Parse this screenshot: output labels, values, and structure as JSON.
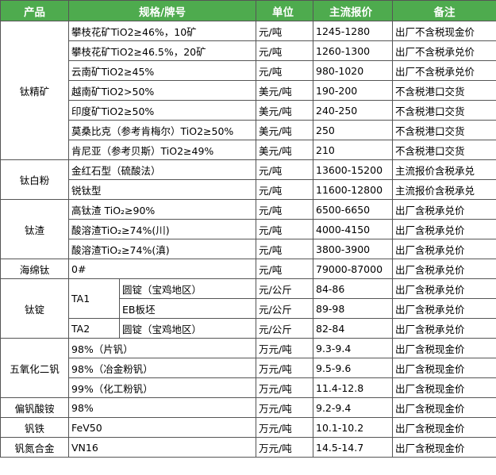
{
  "table": {
    "header": [
      "产品",
      "规格/牌号",
      "单位",
      "主流报价",
      "备注"
    ],
    "groups": [
      {
        "product": "钛精矿",
        "rows": [
          {
            "spec": "攀枝花矿TiO2≥46%，10矿",
            "unit": "元/吨",
            "price": "1245-1280",
            "note": "出厂不含税现金价"
          },
          {
            "spec": "攀枝花矿TiO2≥46.5%，20矿",
            "unit": "元/吨",
            "price": "1260-1300",
            "note": "出厂不含税承兑价"
          },
          {
            "spec": "云南矿TiO2≥45%",
            "unit": "元/吨",
            "price": "980-1020",
            "note": "出厂不含税承兑价"
          },
          {
            "spec": "越南矿TiO2>50%",
            "unit": "美元/吨",
            "price": "190-200",
            "note": "不含税港口交货"
          },
          {
            "spec": "印度矿TiO2≥50%",
            "unit": "美元/吨",
            "price": "240-250",
            "note": "不含税港口交货"
          },
          {
            "spec": "莫桑比克（参考肯梅尔）TiO2≥50%",
            "unit": "美元/吨",
            "price": "250",
            "note": "不含税港口交货"
          },
          {
            "spec": "肯尼亚（参考贝斯）TiO2≥49%",
            "unit": "美元/吨",
            "price": "210",
            "note": "不含税港口交货"
          }
        ]
      },
      {
        "product": "钛白粉",
        "rows": [
          {
            "spec": "金红石型（硫酸法）",
            "unit": "元/吨",
            "price": "13600-15200",
            "note": "主流报价含税承兑"
          },
          {
            "spec": "锐钛型",
            "unit": "元/吨",
            "price": "11600-12800",
            "note": "主流报价含税承兑"
          }
        ]
      },
      {
        "product": "钛渣",
        "rows": [
          {
            "spec": "高钛渣 TiO₂≥90%",
            "unit": "元/吨",
            "price": "6500-6650",
            "note": "出厂含税承兑价"
          },
          {
            "spec": "酸溶渣TiO₂≥74%(川)",
            "unit": "元/吨",
            "price": "4000-4150",
            "note": "出厂含税承兑价"
          },
          {
            "spec": "酸溶渣TiO₂≥74%(滇)",
            "unit": "元/吨",
            "price": "3800-3900",
            "note": "出厂含税承兑价"
          }
        ]
      },
      {
        "product": "海绵钛",
        "rows": [
          {
            "spec": "0#",
            "unit": "元/吨",
            "price": "79000-87000",
            "note": "出厂含税承兑价"
          }
        ]
      },
      {
        "product": "钛锭",
        "rows": [
          {
            "grade": "TA1",
            "spec": "圆锭（宝鸡地区）",
            "unit": "元/公斤",
            "price": "84-86",
            "note": "出厂含税承兑价"
          },
          {
            "spec": "EB板坯",
            "unit": "元/公斤",
            "price": "89-98",
            "note": "出厂含税承兑价"
          },
          {
            "grade": "TA2",
            "spec": "圆锭（宝鸡地区）",
            "unit": "元/公斤",
            "price": "82-84",
            "note": "出厂含税承兑价"
          }
        ]
      },
      {
        "product": "五氧化二钒",
        "rows": [
          {
            "spec": "98%（片钒）",
            "unit": "万元/吨",
            "price": "9.3-9.4",
            "note": "出厂含税现金价"
          },
          {
            "spec": "98%（冶金粉钒）",
            "unit": "万元/吨",
            "price": "9.5-9.6",
            "note": "出厂含税现金价"
          },
          {
            "spec": "99%（化工粉钒）",
            "unit": "万元/吨",
            "price": "11.4-12.8",
            "note": "出厂含税现金价"
          }
        ]
      },
      {
        "product": "偏钒酸铵",
        "rows": [
          {
            "spec": "98%",
            "unit": "万元/吨",
            "price": "9.2-9.4",
            "note": "出厂含税现金价"
          }
        ]
      },
      {
        "product": "钒铁",
        "rows": [
          {
            "spec": "FeV50",
            "unit": "万元/吨",
            "price": "10.1-10.2",
            "note": "出厂含税现金价"
          }
        ]
      },
      {
        "product": "钒氮合金",
        "rows": [
          {
            "spec": "VN16",
            "unit": "万元/吨",
            "price": "14.5-14.7",
            "note": "出厂含税现金价"
          }
        ]
      }
    ]
  }
}
